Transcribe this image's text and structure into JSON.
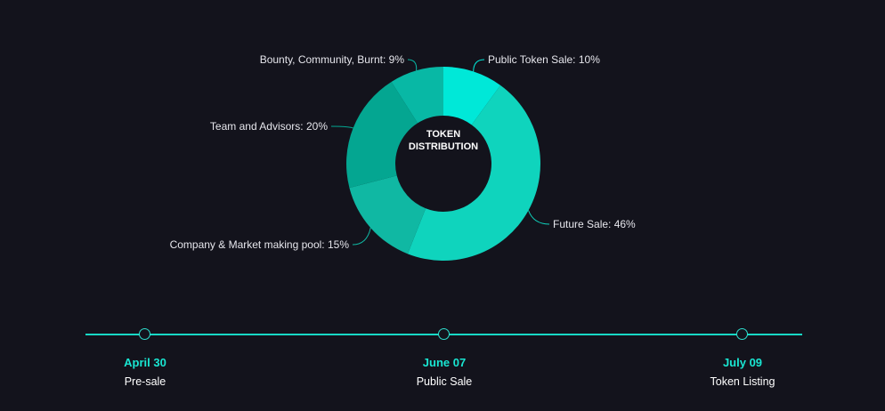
{
  "chart_data": {
    "type": "pie",
    "variant": "donut",
    "title": "TOKEN DISTRIBUTION",
    "title_lines": [
      "TOKEN",
      "DISTRIBUTION"
    ],
    "slices": [
      {
        "name": "Public Token Sale",
        "value": 10,
        "label": "Public Token Sale: 10%",
        "color": "#00e8d8"
      },
      {
        "name": "Future Sale",
        "value": 46,
        "label": "Future Sale: 46%",
        "color": "#0fd4bd"
      },
      {
        "name": "Company & Market making pool",
        "value": 15,
        "label": "Company & Market making pool: 15%",
        "color": "#10b8a3"
      },
      {
        "name": "Team and Advisors",
        "value": 20,
        "label": "Team and Advisors: 20%",
        "color": "#04a691"
      },
      {
        "name": "Bounty, Community, Burnt",
        "value": 9,
        "label": "Bounty, Community, Burnt: 9%",
        "color": "#08b8a5"
      }
    ]
  },
  "timeline": {
    "line_color": "#17d9c6",
    "milestones": [
      {
        "date": "April 30",
        "label": "Pre-sale"
      },
      {
        "date": "June 07",
        "label": "Public Sale"
      },
      {
        "date": "July 09",
        "label": "Token Listing"
      }
    ]
  }
}
